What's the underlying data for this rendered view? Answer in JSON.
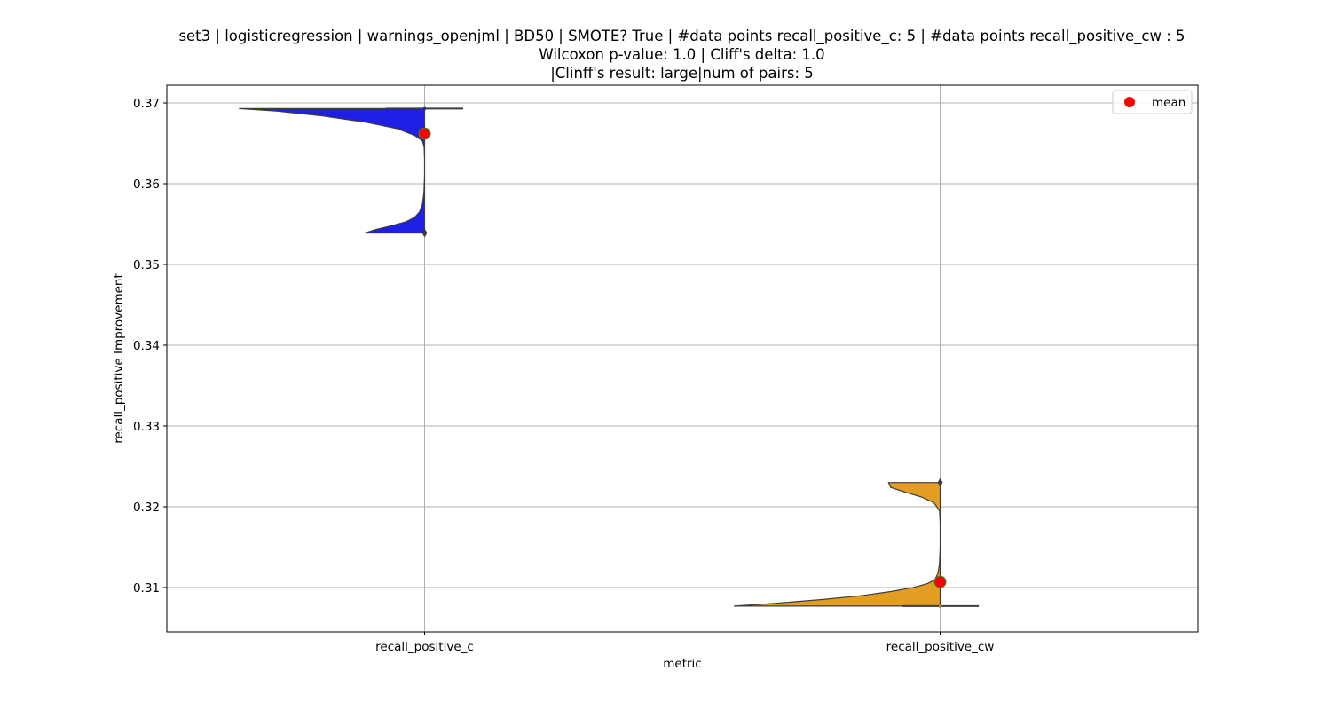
{
  "title_lines": [
    "set3 | logisticregression | warnings_openjml | BD50 | SMOTE? True | #data points recall_positive_c: 5 | #data points recall_positive_cw : 5",
    "Wilcoxon p-value: 1.0 | Cliff's delta: 1.0",
    "|Clinff's result: large|num of pairs: 5"
  ],
  "chart_data": {
    "type": "violin",
    "xlabel": "metric",
    "ylabel": "recall_positive Improvement",
    "categories": [
      "recall_positive_c",
      "recall_positive_cw"
    ],
    "yticks": [
      0.31,
      0.32,
      0.33,
      0.34,
      0.35,
      0.36,
      0.37
    ],
    "ytick_labels": [
      "0.31",
      "0.32",
      "0.33",
      "0.34",
      "0.35",
      "0.36",
      "0.37"
    ],
    "ylim": [
      0.3045,
      0.3722
    ],
    "grid": true,
    "legend": {
      "position": "top-right",
      "entries": [
        {
          "label": "mean",
          "color": "#ff0000"
        }
      ]
    },
    "series": [
      {
        "category": "recall_positive_c",
        "color": "#1f1fe6",
        "min": 0.3539,
        "max": 0.3693,
        "median": 0.3693,
        "mean": 0.3662,
        "outliers": [
          0.3539
        ],
        "density_profile": [
          [
            0.3539,
            0.29
          ],
          [
            0.3543,
            0.24
          ],
          [
            0.3548,
            0.16
          ],
          [
            0.3553,
            0.09
          ],
          [
            0.3558,
            0.05
          ],
          [
            0.3565,
            0.025
          ],
          [
            0.3575,
            0.01
          ],
          [
            0.359,
            0.003
          ],
          [
            0.361,
            0.0
          ],
          [
            0.363,
            0.0
          ],
          [
            0.3645,
            0.002
          ],
          [
            0.3653,
            0.01
          ],
          [
            0.366,
            0.05
          ],
          [
            0.3668,
            0.13
          ],
          [
            0.3676,
            0.28
          ],
          [
            0.3684,
            0.5
          ],
          [
            0.369,
            0.72
          ],
          [
            0.3693,
            0.9
          ]
        ]
      },
      {
        "category": "recall_positive_cw",
        "color": "#e39d22",
        "min": 0.3077,
        "max": 0.323,
        "median": 0.3077,
        "mean": 0.3107,
        "outliers": [
          0.323
        ],
        "density_profile": [
          [
            0.3077,
            1.0
          ],
          [
            0.308,
            0.82
          ],
          [
            0.3085,
            0.58
          ],
          [
            0.309,
            0.38
          ],
          [
            0.3095,
            0.24
          ],
          [
            0.31,
            0.13
          ],
          [
            0.3105,
            0.06
          ],
          [
            0.311,
            0.025
          ],
          [
            0.3118,
            0.01
          ],
          [
            0.313,
            0.003
          ],
          [
            0.315,
            0.0
          ],
          [
            0.318,
            0.0
          ],
          [
            0.3195,
            0.003
          ],
          [
            0.3205,
            0.03
          ],
          [
            0.3212,
            0.09
          ],
          [
            0.3218,
            0.17
          ],
          [
            0.3224,
            0.24
          ],
          [
            0.323,
            0.25
          ]
        ]
      }
    ]
  }
}
